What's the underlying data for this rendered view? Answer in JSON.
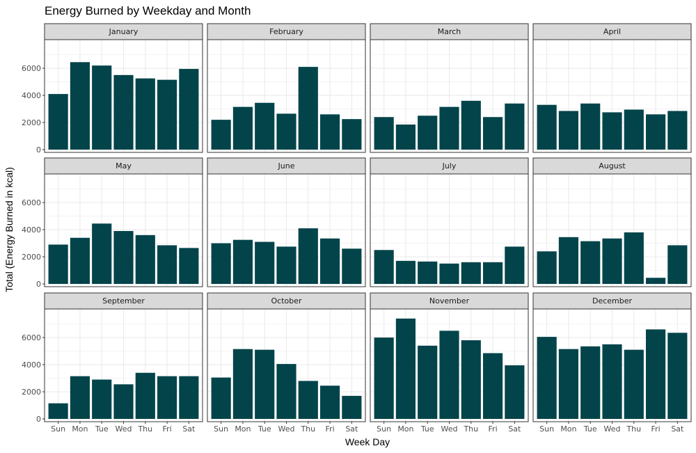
{
  "chart_data": {
    "type": "bar",
    "title": "Energy Burned by Weekday and Month",
    "xlabel": "Week Day",
    "ylabel": "Total (Energy Burned in kcal)",
    "categories": [
      "Sun",
      "Mon",
      "Tue",
      "Wed",
      "Thu",
      "Fri",
      "Sat"
    ],
    "y_ticks": [
      0,
      2000,
      4000,
      6000
    ],
    "ylim": [
      0,
      7800
    ],
    "bar_color": "#02444a",
    "grid": true,
    "facets": [
      {
        "name": "January",
        "values": [
          4100,
          6450,
          6200,
          5500,
          5250,
          5150,
          5950
        ]
      },
      {
        "name": "February",
        "values": [
          2200,
          3150,
          3450,
          2650,
          6100,
          2600,
          2250
        ]
      },
      {
        "name": "March",
        "values": [
          2400,
          1850,
          2500,
          3150,
          3600,
          2400,
          3400
        ]
      },
      {
        "name": "April",
        "values": [
          3300,
          2850,
          3400,
          2750,
          2950,
          2600,
          2850
        ]
      },
      {
        "name": "May",
        "values": [
          2900,
          3400,
          4450,
          3900,
          3600,
          2850,
          2650
        ]
      },
      {
        "name": "June",
        "values": [
          3000,
          3250,
          3100,
          2750,
          4100,
          3350,
          2600
        ]
      },
      {
        "name": "July",
        "values": [
          2500,
          1700,
          1650,
          1500,
          1600,
          1600,
          2750
        ]
      },
      {
        "name": "August",
        "values": [
          2400,
          3450,
          3150,
          3350,
          3800,
          450,
          2850
        ]
      },
      {
        "name": "September",
        "values": [
          1150,
          3150,
          2900,
          2550,
          3400,
          3150,
          3150
        ]
      },
      {
        "name": "October",
        "values": [
          3050,
          5150,
          5100,
          4050,
          2800,
          2450,
          1700
        ]
      },
      {
        "name": "November",
        "values": [
          6000,
          7400,
          5400,
          6500,
          5800,
          4850,
          3950
        ]
      },
      {
        "name": "December",
        "values": [
          6050,
          5150,
          5350,
          5500,
          5100,
          6600,
          6350
        ]
      }
    ]
  }
}
